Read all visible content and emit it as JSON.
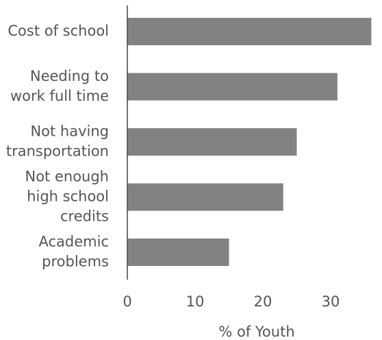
{
  "chart_data": {
    "type": "bar",
    "orientation": "horizontal",
    "categories": [
      [
        "Cost of school"
      ],
      [
        "Needing to",
        "work full time"
      ],
      [
        "Not having",
        "transportation"
      ],
      [
        "Not enough",
        "high school",
        "credits"
      ],
      [
        "Academic",
        "problems"
      ]
    ],
    "values": [
      36,
      31,
      25,
      23,
      15
    ],
    "xlabel": "% of Youth",
    "ylabel": "",
    "xlim": [
      0,
      37
    ],
    "xticks": [
      0,
      10,
      20,
      30
    ],
    "grid": false,
    "bar_color": "#828282"
  }
}
